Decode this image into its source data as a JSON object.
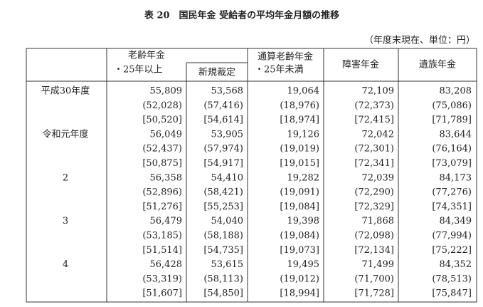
{
  "header": {
    "title": "表 20　国民年金 受給者の平均年金月額の推移",
    "note": "（年度末現在、単位：円）"
  },
  "table": {
    "columns": {
      "old_age": "老齢年金",
      "old_age_sub": "・25年以上",
      "new_award": "新規裁定",
      "tsusan": "通算老齢年金",
      "tsusan_sub": "・25年未満",
      "disability": "障害年金",
      "survivor": "遺族年金"
    },
    "groups": [
      {
        "label": "平成30年度",
        "rows": [
          [
            "55,809",
            "53,568",
            "19,064",
            "72,109",
            "83,208"
          ],
          [
            "(52,028)",
            "(57,416)",
            "(18,976)",
            "(72,373)",
            "(75,086)"
          ],
          [
            "[50,520]",
            "[54,614]",
            "[18,974]",
            "[72,415]",
            "[71,789]"
          ]
        ]
      },
      {
        "label": "令和元年度",
        "rows": [
          [
            "56,049",
            "53,905",
            "19,126",
            "72,042",
            "83,644"
          ],
          [
            "(52,437)",
            "(57,974)",
            "(19,019)",
            "(72,301)",
            "(76,164)"
          ],
          [
            "[50,875]",
            "[54,917]",
            "[19,015]",
            "[72,341]",
            "[73,079]"
          ]
        ]
      },
      {
        "label": "2",
        "rows": [
          [
            "56,358",
            "54,410",
            "19,282",
            "72,039",
            "84,173"
          ],
          [
            "(52,896)",
            "(58,421)",
            "(19,091)",
            "(72,290)",
            "(77,276)"
          ],
          [
            "[51,276]",
            "[55,253]",
            "[19,084]",
            "[72,329]",
            "[74,351]"
          ]
        ]
      },
      {
        "label": "3",
        "rows": [
          [
            "56,479",
            "54,040",
            "19,398",
            "71,868",
            "84,349"
          ],
          [
            "(53,185)",
            "(58,188)",
            "(19,084)",
            "(72,098)",
            "(77,994)"
          ],
          [
            "[51,514]",
            "[54,735]",
            "[19,073]",
            "[72,134]",
            "[75,222]"
          ]
        ]
      },
      {
        "label": "4",
        "rows": [
          [
            "56,428",
            "53,615",
            "19,495",
            "71,499",
            "84,352"
          ],
          [
            "(53,319)",
            "(58,113)",
            "(19,012)",
            "(71,700)",
            "(78,513)"
          ],
          [
            "[51,607]",
            "[54,850]",
            "[18,994]",
            "[71,728]",
            "[75,847]"
          ]
        ]
      }
    ]
  }
}
